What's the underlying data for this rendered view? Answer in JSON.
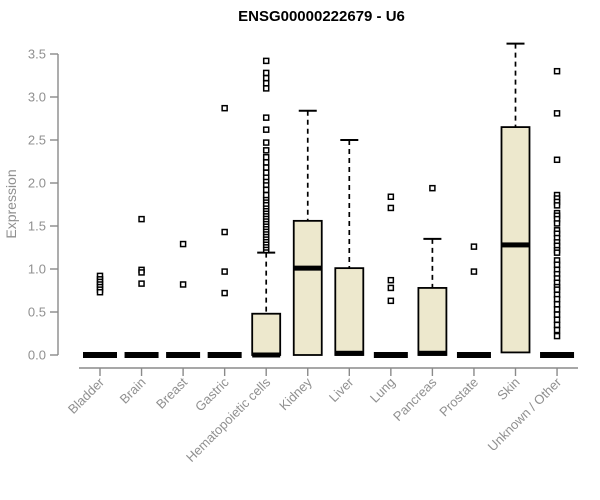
{
  "title": "ENSG00000222679 - U6",
  "colors": {
    "background": "#ffffff",
    "title": "#000000",
    "box_fill": "#ede8cd",
    "box_stroke": "#000000",
    "median": "#000000",
    "whisker": "#000000",
    "outlier_stroke": "#000000",
    "outlier_fill": "#ffffff",
    "axis_line": "#8a8a8a",
    "axis_text": "#909090"
  },
  "chart_data": {
    "type": "boxplot",
    "title": "ENSG00000222679 - U6",
    "xlabel": "",
    "ylabel": "Expression",
    "ylim": [
      0.0,
      3.5
    ],
    "yticks": [
      "0.0",
      "0.5",
      "1.0",
      "1.5",
      "2.0",
      "2.5",
      "3.0",
      "3.5"
    ],
    "grid": "off",
    "legend": "none",
    "categories": [
      "Bladder",
      "Brain",
      "Breast",
      "Gastric",
      "Hematopoietic cells",
      "Kidney",
      "Liver",
      "Lung",
      "Pancreas",
      "Prostate",
      "Skin",
      "Unknown / Other"
    ],
    "boxes": [
      {
        "name": "Bladder",
        "q1": 0,
        "median": 0,
        "q3": 0,
        "whisker_low": 0,
        "whisker_high": 0,
        "outliers": [
          0.92,
          0.88,
          0.85,
          0.82,
          0.79,
          0.76,
          0.73
        ]
      },
      {
        "name": "Brain",
        "q1": 0,
        "median": 0,
        "q3": 0,
        "whisker_low": 0,
        "whisker_high": 0,
        "outliers": [
          1.58,
          0.99,
          0.96,
          0.83
        ]
      },
      {
        "name": "Breast",
        "q1": 0,
        "median": 0,
        "q3": 0,
        "whisker_low": 0,
        "whisker_high": 0,
        "outliers": [
          1.29,
          0.82
        ]
      },
      {
        "name": "Gastric",
        "q1": 0,
        "median": 0,
        "q3": 0,
        "whisker_low": 0,
        "whisker_high": 0,
        "outliers": [
          2.87,
          1.43,
          0.97,
          0.72
        ]
      },
      {
        "name": "Hematopoietic cells",
        "q1": 0,
        "median": 0,
        "q3": 0.48,
        "whisker_low": 0,
        "whisker_high": 1.19,
        "outliers": [
          1.22,
          1.25,
          1.28,
          1.31,
          1.34,
          1.37,
          1.4,
          1.43,
          1.46,
          1.49,
          1.52,
          1.55,
          1.58,
          1.61,
          1.64,
          1.67,
          1.7,
          1.73,
          1.76,
          1.8,
          1.83,
          1.86,
          1.92,
          1.98,
          2.03,
          2.07,
          2.12,
          2.18,
          2.24,
          2.3,
          2.38,
          2.47,
          2.62,
          2.76,
          3.1,
          3.16,
          3.22,
          3.28,
          3.42
        ]
      },
      {
        "name": "Kidney",
        "q1": 0,
        "median": 1.01,
        "q3": 1.56,
        "whisker_low": 0,
        "whisker_high": 2.84,
        "outliers": []
      },
      {
        "name": "Liver",
        "q1": 0,
        "median": 0.02,
        "q3": 1.01,
        "whisker_low": 0,
        "whisker_high": 2.5,
        "outliers": []
      },
      {
        "name": "Lung",
        "q1": 0,
        "median": 0,
        "q3": 0,
        "whisker_low": 0,
        "whisker_high": 0,
        "outliers": [
          1.84,
          1.71,
          0.87,
          0.78,
          0.63
        ]
      },
      {
        "name": "Pancreas",
        "q1": 0,
        "median": 0.02,
        "q3": 0.78,
        "whisker_low": 0,
        "whisker_high": 1.35,
        "outliers": [
          1.94
        ]
      },
      {
        "name": "Prostate",
        "q1": 0,
        "median": 0,
        "q3": 0,
        "whisker_low": 0,
        "whisker_high": 0,
        "outliers": [
          1.26,
          0.97
        ]
      },
      {
        "name": "Skin",
        "q1": 0.03,
        "median": 1.28,
        "q3": 2.65,
        "whisker_low": 0.03,
        "whisker_high": 3.62,
        "outliers": []
      },
      {
        "name": "Unknown / Other",
        "q1": 0,
        "median": 0,
        "q3": 0,
        "whisker_low": 0,
        "whisker_high": 0,
        "outliers": [
          3.3,
          2.81,
          2.27,
          1.86,
          1.82,
          1.78,
          1.74,
          1.65,
          1.62,
          1.58,
          1.53,
          1.45,
          1.41,
          1.36,
          1.31,
          1.27,
          1.22,
          1.19,
          1.1,
          1.05,
          0.99,
          0.94,
          0.89,
          0.84,
          0.79,
          0.76,
          0.7,
          0.65,
          0.59,
          0.53,
          0.47,
          0.41,
          0.35,
          0.29,
          0.22
        ]
      }
    ]
  }
}
